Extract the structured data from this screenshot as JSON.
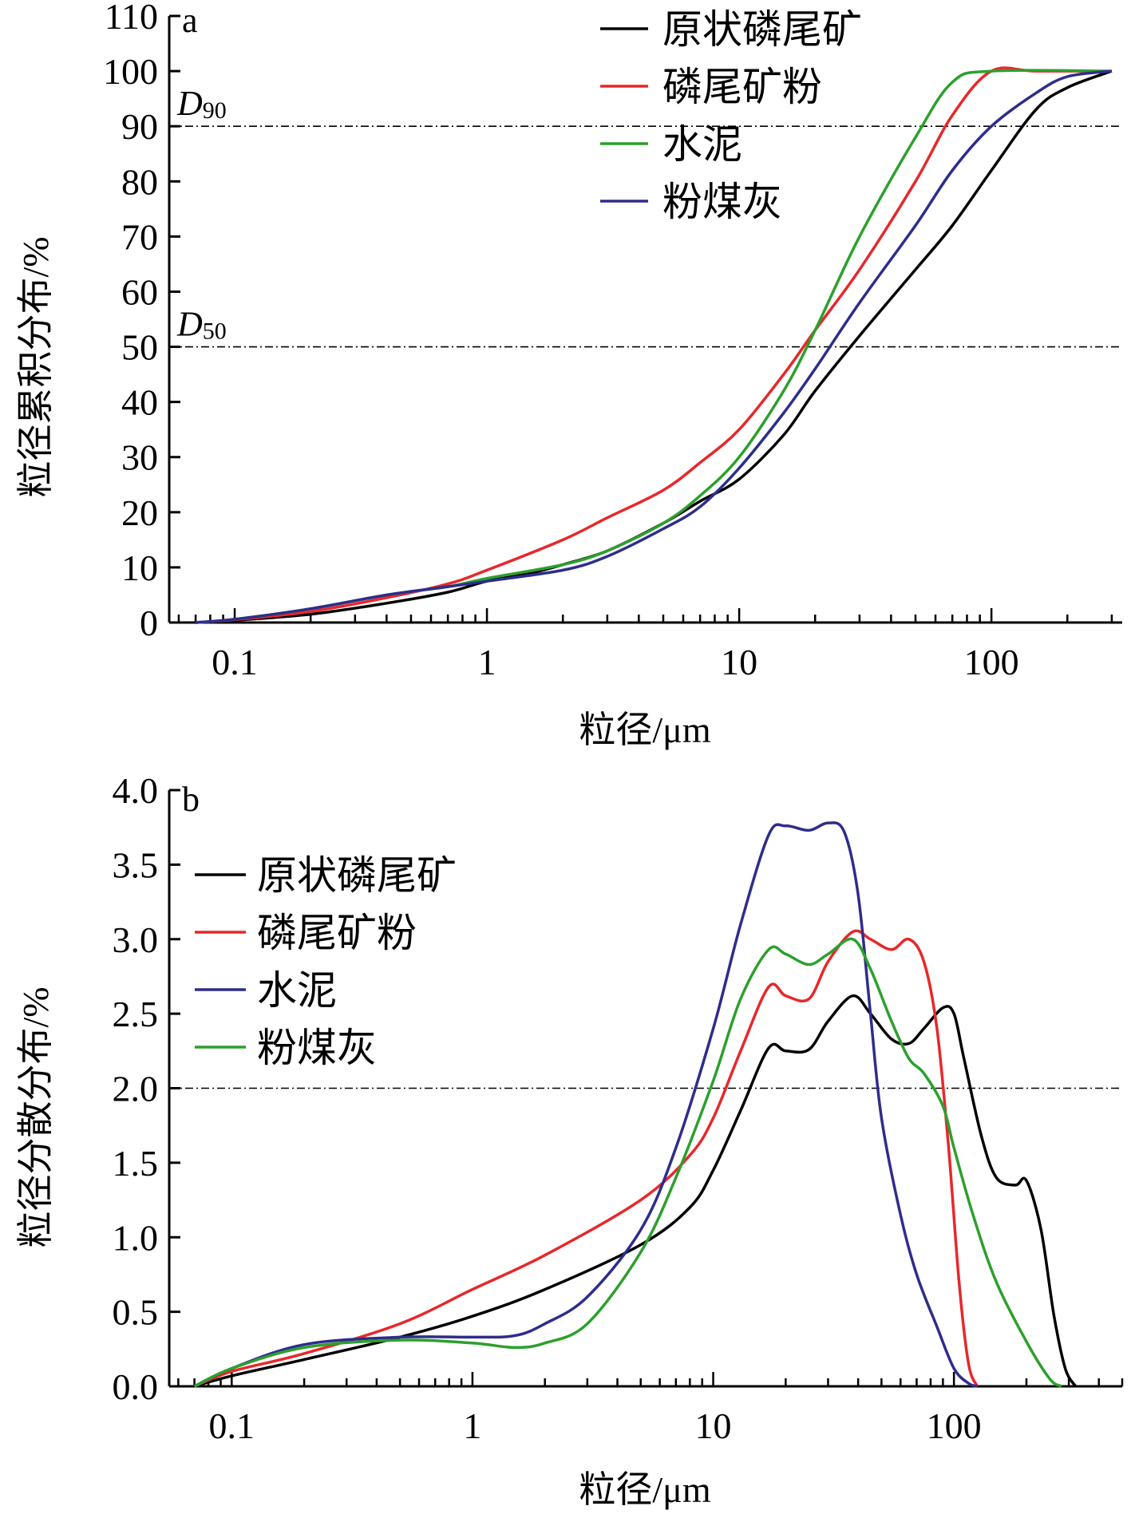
{
  "chart_data": [
    {
      "type": "line",
      "panel_label": "a",
      "xlabel": "粒径/μm",
      "ylabel": "粒径累积分布/%",
      "x_scale": "log",
      "xlim": [
        0.055,
        330
      ],
      "ylim": [
        0,
        110
      ],
      "x_ticks": [
        0.1,
        1,
        10,
        100
      ],
      "x_tick_labels": [
        "0.1",
        "1",
        "10",
        "100"
      ],
      "y_ticks": [
        0,
        10,
        20,
        30,
        40,
        50,
        60,
        70,
        80,
        90,
        100,
        110
      ],
      "y_tick_labels": [
        "0",
        "10",
        "20",
        "30",
        "40",
        "50",
        "60",
        "70",
        "80",
        "90",
        "100",
        "110"
      ],
      "grid": false,
      "legend_position": "top-right",
      "reference_lines": [
        {
          "y": 90,
          "label_main": "D",
          "label_sub": "90"
        },
        {
          "y": 50,
          "label_main": "D",
          "label_sub": "50"
        }
      ],
      "series": [
        {
          "name": "原状磷尾矿",
          "color": "#000000",
          "x": [
            0.07,
            0.1,
            0.2,
            0.4,
            0.7,
            1,
            1.5,
            2,
            3,
            5,
            7,
            10,
            15,
            20,
            30,
            50,
            70,
            100,
            150,
            200,
            300
          ],
          "y": [
            0,
            0.4,
            1.5,
            3.5,
            5.5,
            7.5,
            9,
            10.5,
            13,
            18,
            22,
            26,
            34,
            42,
            52,
            64,
            72,
            82,
            93,
            97,
            100
          ]
        },
        {
          "name": "磷尾矿粉",
          "color": "#e8272a",
          "x": [
            0.07,
            0.1,
            0.2,
            0.4,
            0.7,
            1,
            2,
            3,
            5,
            7,
            10,
            15,
            20,
            30,
            50,
            70,
            100,
            150,
            300
          ],
          "y": [
            0,
            0.5,
            2,
            4.5,
            7,
            9.5,
            15,
            19,
            24,
            29,
            35,
            45,
            53,
            64,
            80,
            92,
            100,
            100,
            100
          ]
        },
        {
          "name": "水泥",
          "color": "#2ca02c",
          "x": [
            0.07,
            0.1,
            0.2,
            0.4,
            0.7,
            1,
            2,
            3,
            5,
            7,
            10,
            15,
            20,
            30,
            50,
            70,
            100,
            300
          ],
          "y": [
            0,
            0.6,
            2.5,
            5,
            6.5,
            8,
            10.5,
            13,
            18,
            23,
            30,
            42,
            53,
            70,
            88,
            98,
            100,
            100
          ]
        },
        {
          "name": "粉煤灰",
          "color": "#2e2d8c",
          "x": [
            0.07,
            0.1,
            0.2,
            0.4,
            0.7,
            1,
            2,
            3,
            5,
            7,
            10,
            15,
            20,
            30,
            50,
            70,
            100,
            150,
            200,
            300
          ],
          "y": [
            0,
            0.6,
            2.5,
            5,
            6.5,
            7.5,
            9.5,
            12,
            17,
            21,
            28,
            38,
            46,
            58,
            72,
            82,
            90,
            96,
            99,
            100
          ]
        }
      ]
    },
    {
      "type": "line",
      "panel_label": "b",
      "xlabel": "粒径/μm",
      "ylabel": "粒径分散分布/%",
      "x_scale": "log",
      "xlim": [
        0.055,
        500
      ],
      "ylim": [
        0,
        4.0
      ],
      "x_ticks": [
        0.1,
        1,
        10,
        100
      ],
      "x_tick_labels": [
        "0.1",
        "1",
        "10",
        "100"
      ],
      "y_ticks": [
        0.0,
        0.5,
        1.0,
        1.5,
        2.0,
        2.5,
        3.0,
        3.5,
        4.0
      ],
      "y_tick_labels": [
        "0.0",
        "0.5",
        "1.0",
        "1.5",
        "2.0",
        "2.5",
        "3.0",
        "3.5",
        "4.0"
      ],
      "grid": false,
      "legend_position": "top-left",
      "reference_lines": [
        {
          "y": 2.0
        }
      ],
      "series": [
        {
          "name": "原状磷尾矿",
          "color": "#000000",
          "x": [
            0.07,
            0.1,
            0.2,
            0.5,
            1,
            2,
            5,
            8,
            10,
            13,
            17,
            20,
            25,
            30,
            38,
            45,
            55,
            65,
            75,
            90,
            100,
            110,
            130,
            150,
            180,
            200,
            230,
            260,
            290,
            320
          ],
          "y": [
            0,
            0.07,
            0.18,
            0.33,
            0.47,
            0.65,
            0.95,
            1.2,
            1.45,
            1.85,
            2.27,
            2.25,
            2.26,
            2.45,
            2.62,
            2.5,
            2.33,
            2.3,
            2.4,
            2.54,
            2.5,
            2.2,
            1.68,
            1.4,
            1.35,
            1.38,
            1.05,
            0.48,
            0.12,
            0
          ]
        },
        {
          "name": "磷尾矿粉",
          "color": "#e8272a",
          "x": [
            0.07,
            0.1,
            0.2,
            0.5,
            1,
            2,
            5,
            8,
            10,
            13,
            17,
            20,
            25,
            30,
            38,
            45,
            55,
            65,
            75,
            85,
            95,
            105,
            115,
            125
          ],
          "y": [
            0,
            0.1,
            0.22,
            0.42,
            0.65,
            0.88,
            1.25,
            1.55,
            1.8,
            2.25,
            2.68,
            2.62,
            2.6,
            2.85,
            3.05,
            3.0,
            2.93,
            3.0,
            2.85,
            2.4,
            1.6,
            0.7,
            0.15,
            0
          ]
        },
        {
          "name": "水泥",
          "color": "#2e2d8c",
          "x": [
            0.07,
            0.1,
            0.2,
            0.5,
            1,
            1.5,
            2,
            3,
            5,
            7,
            10,
            13,
            17,
            20,
            25,
            30,
            35,
            40,
            45,
            50,
            60,
            70,
            85,
            100,
            115,
            125
          ],
          "y": [
            0,
            0.12,
            0.28,
            0.33,
            0.33,
            0.34,
            0.42,
            0.6,
            1.05,
            1.6,
            2.4,
            3.1,
            3.7,
            3.76,
            3.73,
            3.78,
            3.72,
            3.3,
            2.5,
            1.8,
            1.15,
            0.75,
            0.4,
            0.12,
            0.02,
            0
          ]
        },
        {
          "name": "粉煤灰",
          "color": "#2ca02c",
          "x": [
            0.07,
            0.1,
            0.2,
            0.5,
            1,
            1.5,
            2,
            3,
            5,
            7,
            10,
            13,
            17,
            20,
            25,
            30,
            38,
            45,
            55,
            65,
            75,
            90,
            100,
            120,
            150,
            200,
            250,
            280
          ],
          "y": [
            0,
            0.12,
            0.26,
            0.31,
            0.29,
            0.26,
            0.29,
            0.42,
            0.9,
            1.4,
            2.05,
            2.6,
            2.93,
            2.9,
            2.83,
            2.9,
            3.0,
            2.8,
            2.45,
            2.2,
            2.1,
            1.88,
            1.6,
            1.15,
            0.7,
            0.3,
            0.05,
            0
          ]
        }
      ]
    }
  ]
}
